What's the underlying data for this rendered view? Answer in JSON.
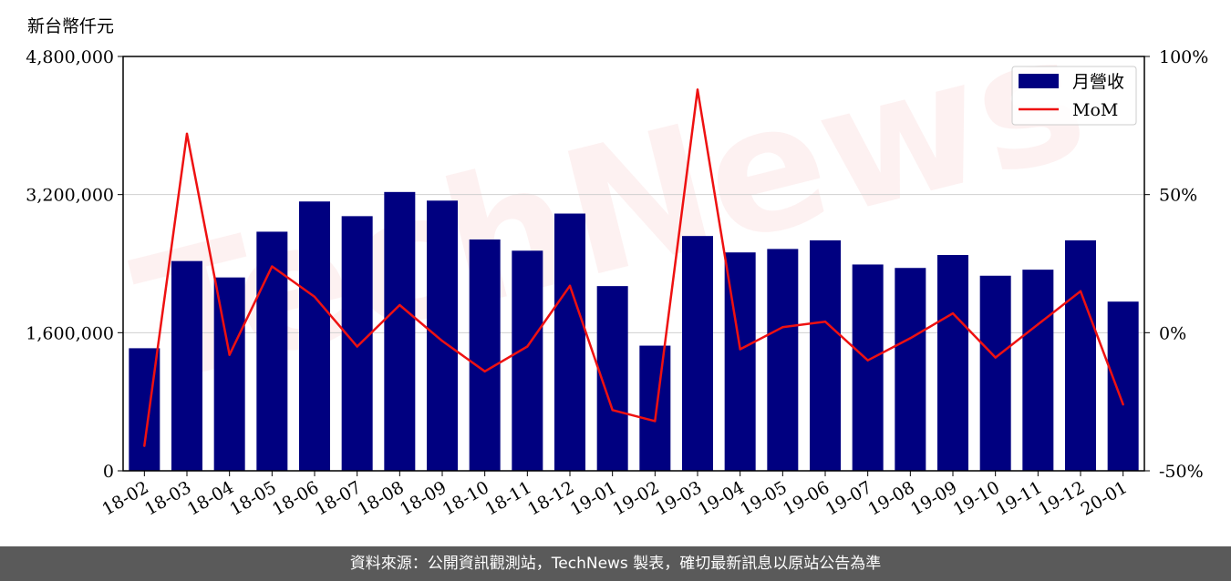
{
  "unit_label": "新台幣仟元",
  "footer_text": "資料來源：公開資訊觀測站，TechNews 製表，確切最新訊息以原站公告為準",
  "colors": {
    "bar": "#000080",
    "line": "#ee1111",
    "grid": "#d0d0d0"
  },
  "chart_data": {
    "type": "bar",
    "categories": [
      "18-02",
      "18-03",
      "18-04",
      "18-05",
      "18-06",
      "18-07",
      "18-08",
      "18-09",
      "18-10",
      "18-11",
      "18-12",
      "19-01",
      "19-02",
      "19-03",
      "19-04",
      "19-05",
      "19-06",
      "19-07",
      "19-08",
      "19-09",
      "19-10",
      "19-11",
      "19-12",
      "20-01"
    ],
    "series": [
      {
        "name": "月營收",
        "type": "bar",
        "axis": "left",
        "values": [
          1420000,
          2430000,
          2240000,
          2770000,
          3120000,
          2950000,
          3230000,
          3130000,
          2680000,
          2550000,
          2980000,
          2140000,
          1450000,
          2720000,
          2530000,
          2570000,
          2670000,
          2390000,
          2350000,
          2500000,
          2260000,
          2330000,
          2670000,
          1960000
        ]
      },
      {
        "name": "MoM",
        "type": "line",
        "axis": "right",
        "values": [
          -41,
          72,
          -8,
          24,
          13,
          -5,
          10,
          -3,
          -14,
          -5,
          17,
          -28,
          -32,
          88,
          -6,
          2,
          4,
          -10,
          -2,
          7,
          -9,
          3,
          15,
          -26
        ]
      }
    ],
    "y_left": {
      "min": 0,
      "max": 4800000,
      "ticks": [
        "0",
        "1,600,000",
        "3,200,000",
        "4,800,000"
      ]
    },
    "y_right": {
      "min": -50,
      "max": 100,
      "ticks": [
        "-50%",
        "0%",
        "50%",
        "100%"
      ]
    },
    "grid": true,
    "legend_position": "top-right"
  }
}
